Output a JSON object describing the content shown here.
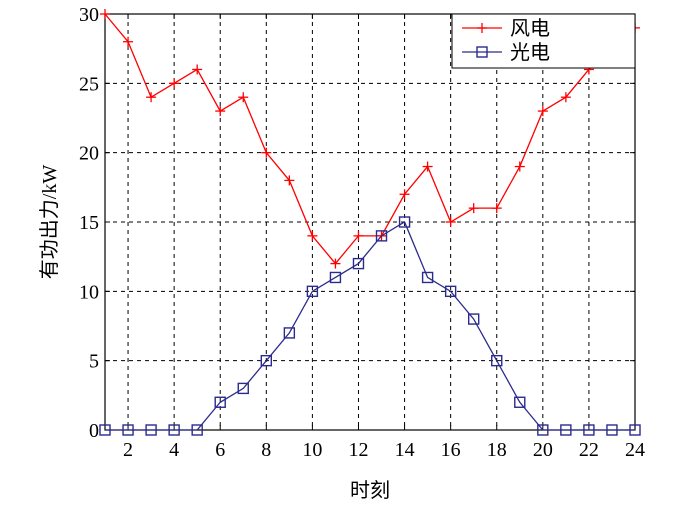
{
  "chart_data": {
    "type": "line",
    "xlabel": "时刻",
    "ylabel": "有功出力/kW",
    "xlim": [
      1,
      24
    ],
    "ylim": [
      0,
      30
    ],
    "xticks": [
      2,
      4,
      6,
      8,
      10,
      12,
      14,
      16,
      18,
      20,
      22,
      24
    ],
    "yticks": [
      0,
      5,
      10,
      15,
      20,
      25,
      30
    ],
    "grid": true,
    "legend_position": "top-right",
    "x": [
      1,
      2,
      3,
      4,
      5,
      6,
      7,
      8,
      9,
      10,
      11,
      12,
      13,
      14,
      15,
      16,
      17,
      18,
      19,
      20,
      21,
      22,
      23,
      24
    ],
    "series": [
      {
        "name": "风电",
        "color": "#ff0000",
        "marker": "plus",
        "values": [
          30,
          28,
          24,
          25,
          26,
          23,
          24,
          20,
          18,
          14,
          12,
          14,
          14,
          17,
          19,
          15,
          16,
          16,
          19,
          23,
          24,
          26,
          28,
          29
        ]
      },
      {
        "name": "光电",
        "color": "#2b2b8f",
        "marker": "square",
        "values": [
          0,
          0,
          0,
          0,
          0,
          2,
          3,
          5,
          7,
          10,
          11,
          12,
          14,
          15,
          11,
          10,
          8,
          5,
          2,
          0,
          0,
          0,
          0,
          0
        ]
      }
    ]
  }
}
